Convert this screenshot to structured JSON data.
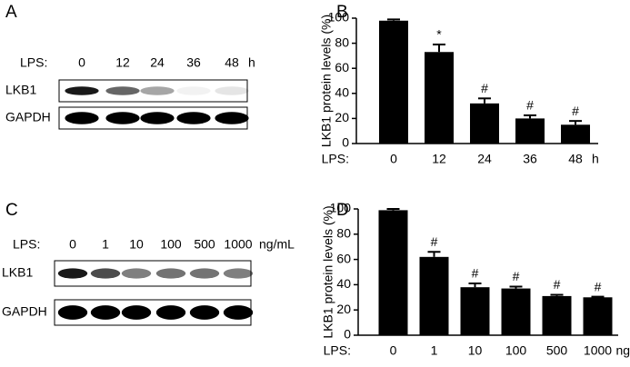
{
  "panels": [
    "A",
    "B",
    "C",
    "D"
  ],
  "blots": [
    {
      "treatment_label": "LPS:",
      "lanes": [
        "0",
        "12",
        "24",
        "36",
        "48"
      ],
      "unit": "h",
      "rows": [
        "LKB1",
        "GAPDH"
      ]
    },
    {
      "treatment_label": "LPS:",
      "lanes": [
        "0",
        "1",
        "10",
        "100",
        "500",
        "1000"
      ],
      "unit": "ng/mL",
      "rows": [
        "LKB1",
        "GAPDH"
      ]
    }
  ],
  "chart_data": [
    {
      "type": "bar",
      "y_label": "LKB1 protein levels (%)",
      "x_prefix": "LPS:",
      "x_unit": "h",
      "categories": [
        "0",
        "12",
        "24",
        "36",
        "48"
      ],
      "values": [
        98,
        73,
        32,
        20,
        15
      ],
      "errors": [
        1,
        6,
        4,
        2.5,
        3
      ],
      "markers": [
        null,
        "*",
        "#",
        "#",
        "#"
      ],
      "color": "#000000",
      "ylim": [
        0,
        100
      ],
      "yticks": [
        0,
        20,
        40,
        60,
        80,
        100
      ]
    },
    {
      "type": "bar",
      "y_label": "LKB1 protein levels (%)",
      "x_prefix": "LPS:",
      "x_unit": "ng/mL",
      "categories": [
        "0",
        "1",
        "10",
        "100",
        "500",
        "1000"
      ],
      "values": [
        99,
        62,
        38,
        37,
        31,
        30
      ],
      "errors": [
        1,
        4,
        3,
        1.5,
        1,
        0.5
      ],
      "markers": [
        null,
        "#",
        "#",
        "#",
        "#",
        "#"
      ],
      "color": "#000000",
      "ylim": [
        0,
        100
      ],
      "yticks": [
        0,
        20,
        40,
        60,
        80,
        100
      ]
    }
  ]
}
